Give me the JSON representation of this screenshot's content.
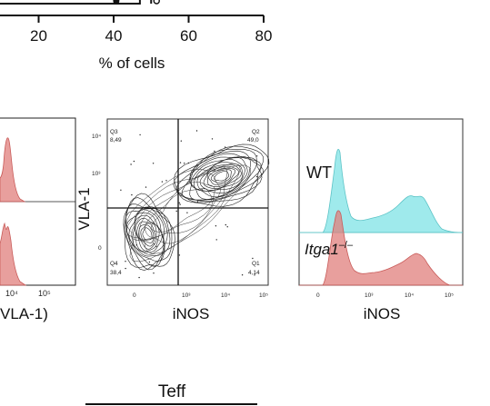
{
  "chart_data": [
    {
      "type": "bar",
      "title": "",
      "xlabel": "% of cells",
      "ylabel": "",
      "xlim": [
        0,
        80
      ],
      "xticks": [
        "20",
        "40",
        "60",
        "80"
      ],
      "categories": [
        ""
      ],
      "values": [
        47
      ],
      "error": 3
    },
    {
      "type": "histogram",
      "xlabel": "VLA-1)",
      "ylabel": "",
      "xticks": [
        "10⁴",
        "10⁵"
      ],
      "series": [
        {
          "name": "",
          "color": "#e07f7c"
        },
        {
          "name": "",
          "color": "#e07f7c"
        }
      ]
    },
    {
      "type": "contour",
      "xlabel": "iNOS",
      "ylabel": "VLA-1",
      "xticks": [
        "0",
        "10³",
        "10⁴",
        "10⁵"
      ],
      "yticks": [
        "10⁴",
        "10³",
        "0"
      ],
      "quadrants": [
        {
          "name": "Q3",
          "value": "8,49"
        },
        {
          "name": "Q2",
          "value": "49,0"
        },
        {
          "name": "Q4",
          "value": "38,4"
        },
        {
          "name": "Q1",
          "value": "4,14"
        }
      ]
    },
    {
      "type": "histogram",
      "xlabel": "iNOS",
      "ylabel": "",
      "xticks": [
        "0",
        "10³",
        "10⁴",
        "10⁵"
      ],
      "series": [
        {
          "name": "WT",
          "color": "#7fe3e6"
        },
        {
          "name": "Itga1",
          "superscript": "–/–",
          "color": "#e07f7c"
        }
      ]
    }
  ],
  "bottom": {
    "label": "Teff"
  }
}
